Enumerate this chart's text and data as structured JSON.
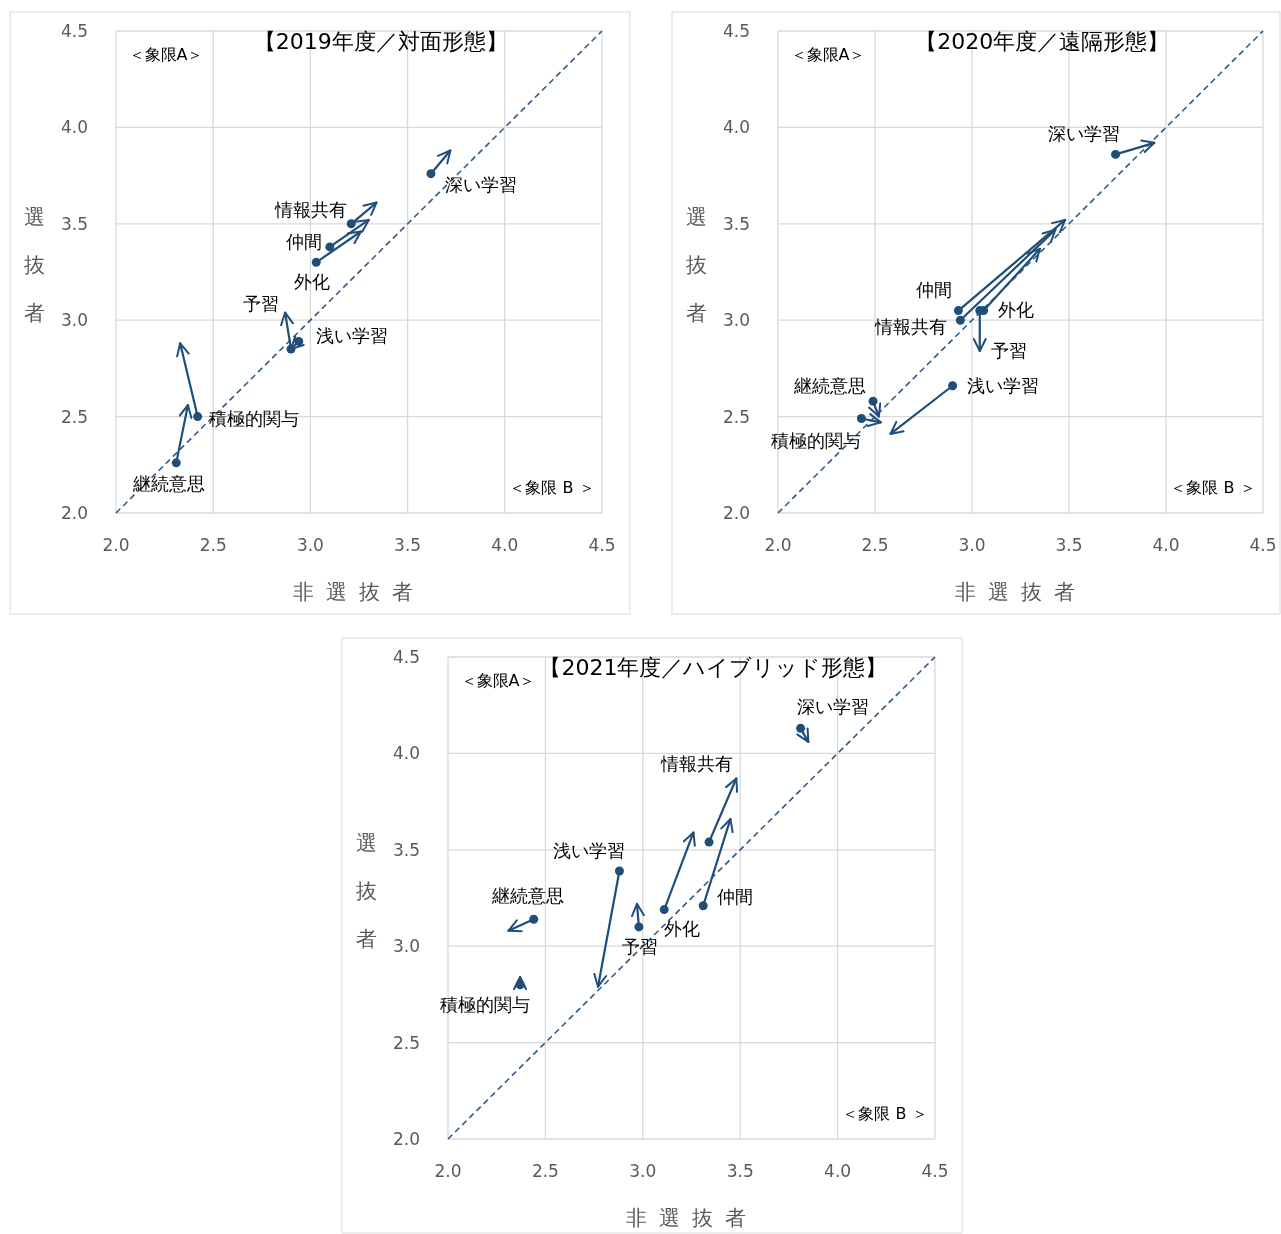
{
  "chart_data": [
    {
      "type": "scatter",
      "title": "【2019年度／対面形態】",
      "xlabel": "非選抜者",
      "ylabel": "選抜者",
      "xlim": [
        2.0,
        4.5
      ],
      "ylim": [
        2.0,
        4.5
      ],
      "xticks": [
        {
          "value": 2.0,
          "label": "2.0"
        },
        2.5,
        {
          "value": 3.0,
          "label": "3.0"
        },
        3.5,
        {
          "value": 4.0,
          "label": "4.0"
        },
        4.5
      ],
      "yticks": [
        {
          "value": 2.0,
          "label": "2.0"
        },
        2.5,
        {
          "value": 3.0,
          "label": "3.0"
        },
        3.5,
        {
          "value": 4.0,
          "label": "4.0"
        },
        4.5
      ],
      "grid": true,
      "annotations": [
        "＜象限A＞",
        "＜象限 B ＞"
      ],
      "series": [
        {
          "type": "line",
          "color": "#2e5c8a",
          "line_style": "dashed",
          "marker": "none",
          "x": [
            2.0,
            4.5
          ],
          "values": [
            2.0,
            4.5
          ]
        },
        {
          "type": "line",
          "name": "深い学習",
          "color": "#1f4e79",
          "marker": "circle",
          "x": [
            3.62,
            3.72
          ],
          "values": [
            3.76,
            3.88
          ]
        },
        {
          "type": "line",
          "name": "情報共有",
          "color": "#1f4e79",
          "marker": "circle",
          "x": [
            3.21,
            3.34
          ],
          "values": [
            3.5,
            3.61
          ]
        },
        {
          "type": "line",
          "name": "仲間",
          "color": "#1f4e79",
          "marker": "circle",
          "x": [
            3.1,
            3.3
          ],
          "values": [
            3.38,
            3.52
          ]
        },
        {
          "type": "line",
          "name": "外化",
          "color": "#1f4e79",
          "marker": "circle",
          "x": [
            3.03,
            3.26
          ],
          "values": [
            3.3,
            3.46
          ]
        },
        {
          "type": "line",
          "name": "予習",
          "color": "#1f4e79",
          "marker": "circle",
          "x": [
            2.9,
            2.87
          ],
          "values": [
            2.85,
            3.04
          ]
        },
        {
          "type": "line",
          "name": "浅い学習",
          "color": "#1f4e79",
          "marker": "circle",
          "x": [
            2.94,
            2.9
          ],
          "values": [
            2.89,
            2.85
          ]
        },
        {
          "type": "line",
          "name": "積極的関与",
          "color": "#1f4e79",
          "marker": "circle",
          "x": [
            2.42,
            2.33
          ],
          "values": [
            2.5,
            2.88
          ]
        },
        {
          "type": "line",
          "name": "継続意思",
          "color": "#1f4e79",
          "marker": "circle",
          "x": [
            2.31,
            2.37
          ],
          "values": [
            2.26,
            2.56
          ]
        }
      ]
    },
    {
      "type": "scatter",
      "title": "【2020年度／遠隔形態】",
      "xlabel": "非選抜者",
      "ylabel": "選抜者",
      "xlim": [
        2.0,
        4.5
      ],
      "ylim": [
        2.0,
        4.5
      ],
      "xticks": [
        {
          "value": 2.0,
          "label": "2.0"
        },
        2.5,
        {
          "value": 3.0,
          "label": "3.0"
        },
        3.5,
        {
          "value": 4.0,
          "label": "4.0"
        },
        4.5
      ],
      "yticks": [
        {
          "value": 2.0,
          "label": "2.0"
        },
        2.5,
        {
          "value": 3.0,
          "label": "3.0"
        },
        3.5,
        {
          "value": 4.0,
          "label": "4.0"
        },
        4.5
      ],
      "grid": true,
      "annotations": [
        "＜象限A＞",
        "＜象限 B ＞"
      ],
      "series": [
        {
          "type": "line",
          "color": "#2e5c8a",
          "line_style": "dashed",
          "marker": "none",
          "x": [
            2.0,
            4.5
          ],
          "values": [
            2.0,
            4.5
          ]
        },
        {
          "type": "line",
          "name": "深い学習",
          "color": "#1f4e79",
          "marker": "circle",
          "x": [
            3.74,
            3.94
          ],
          "values": [
            3.86,
            3.92
          ]
        },
        {
          "type": "line",
          "name": "仲間",
          "color": "#1f4e79",
          "marker": "circle",
          "x": [
            2.93,
            3.48
          ],
          "values": [
            3.05,
            3.52
          ]
        },
        {
          "type": "line",
          "name": "情報共有",
          "color": "#1f4e79",
          "marker": "circle",
          "x": [
            2.94,
            3.43
          ],
          "values": [
            3.0,
            3.47
          ]
        },
        {
          "type": "line",
          "name": "外化",
          "color": "#1f4e79",
          "marker": "circle",
          "x": [
            3.06,
            3.35
          ],
          "values": [
            3.05,
            3.37
          ]
        },
        {
          "type": "line",
          "name": "予習",
          "color": "#1f4e79",
          "marker": "circle",
          "x": [
            3.04,
            3.04
          ],
          "values": [
            3.05,
            2.84
          ]
        },
        {
          "type": "line",
          "name": "浅い学習",
          "color": "#1f4e79",
          "marker": "circle",
          "x": [
            2.9,
            2.58
          ],
          "values": [
            2.66,
            2.41
          ]
        },
        {
          "type": "line",
          "name": "継続意思",
          "color": "#1f4e79",
          "marker": "circle",
          "x": [
            2.49,
            2.52
          ],
          "values": [
            2.58,
            2.5
          ]
        },
        {
          "type": "line",
          "name": "積極的関与",
          "color": "#1f4e79",
          "marker": "circle",
          "x": [
            2.43,
            2.53
          ],
          "values": [
            2.49,
            2.47
          ]
        }
      ]
    },
    {
      "type": "scatter",
      "title": "【2021年度／ハイブリッド形態】",
      "xlabel": "非選抜者",
      "ylabel": "選抜者",
      "xlim": [
        2.0,
        4.5
      ],
      "ylim": [
        2.0,
        4.5
      ],
      "xticks": [
        {
          "value": 2.0,
          "label": "2.0"
        },
        2.5,
        {
          "value": 3.0,
          "label": "3.0"
        },
        3.5,
        {
          "value": 4.0,
          "label": "4.0"
        },
        4.5
      ],
      "yticks": [
        {
          "value": 2.0,
          "label": "2.0"
        },
        2.5,
        {
          "value": 3.0,
          "label": "3.0"
        },
        3.5,
        {
          "value": 4.0,
          "label": "4.0"
        },
        4.5
      ],
      "grid": true,
      "annotations": [
        "＜象限A＞",
        "＜象限 B ＞"
      ],
      "series": [
        {
          "type": "line",
          "color": "#2e5c8a",
          "line_style": "dashed",
          "marker": "none",
          "x": [
            2.0,
            4.5
          ],
          "values": [
            2.0,
            4.5
          ]
        },
        {
          "type": "line",
          "name": "深い学習",
          "color": "#1f4e79",
          "marker": "circle",
          "x": [
            3.81,
            3.85
          ],
          "values": [
            4.13,
            4.06
          ]
        },
        {
          "type": "line",
          "name": "情報共有",
          "color": "#1f4e79",
          "marker": "circle",
          "x": [
            3.34,
            3.48
          ],
          "values": [
            3.54,
            3.87
          ]
        },
        {
          "type": "line",
          "name": "仲間",
          "color": "#1f4e79",
          "marker": "circle",
          "x": [
            3.31,
            3.45
          ],
          "values": [
            3.21,
            3.66
          ]
        },
        {
          "type": "line",
          "name": "外化",
          "color": "#1f4e79",
          "marker": "circle",
          "x": [
            3.11,
            3.26
          ],
          "values": [
            3.19,
            3.59
          ]
        },
        {
          "type": "line",
          "name": "予習",
          "color": "#1f4e79",
          "marker": "circle",
          "x": [
            2.98,
            2.97
          ],
          "values": [
            3.1,
            3.22
          ]
        },
        {
          "type": "line",
          "name": "浅い学習",
          "color": "#1f4e79",
          "marker": "circle",
          "x": [
            2.88,
            2.77
          ],
          "values": [
            3.39,
            2.79
          ]
        },
        {
          "type": "line",
          "name": "継続意思",
          "color": "#1f4e79",
          "marker": "circle",
          "x": [
            2.44,
            2.31
          ],
          "values": [
            3.14,
            3.08
          ]
        },
        {
          "type": "line",
          "name": "積極的関与",
          "color": "#1f4e79",
          "marker": "circle",
          "x": [
            2.37,
            2.37
          ],
          "values": [
            2.8,
            2.84
          ]
        }
      ]
    }
  ]
}
